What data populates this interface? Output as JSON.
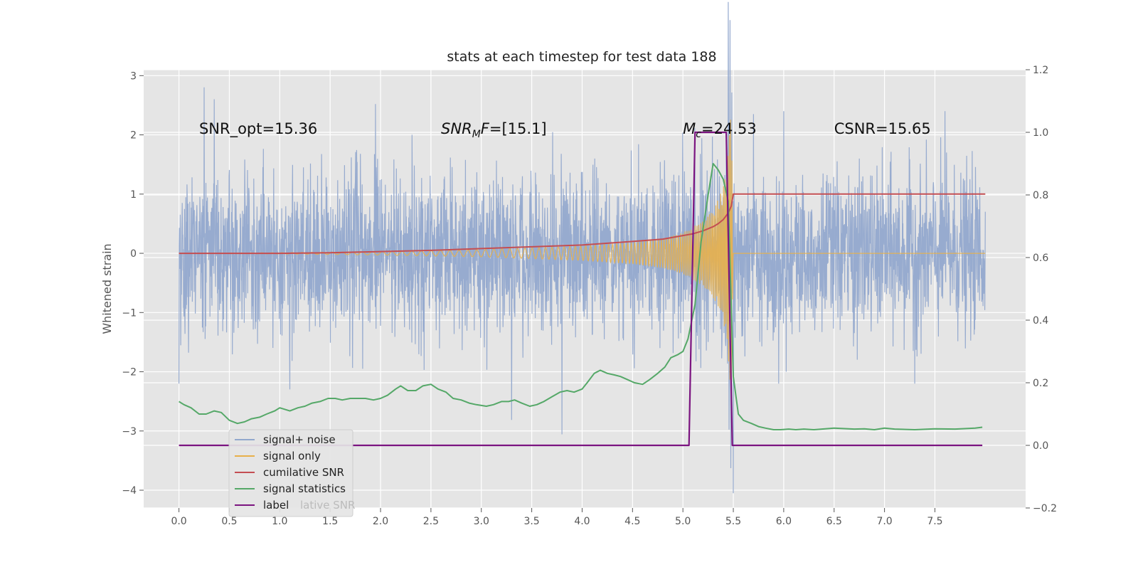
{
  "chart_data": {
    "type": "line",
    "title": "stats at each timestep for test data 188",
    "xlabel": "",
    "ylabel": "Whitened strain",
    "ylabel_right": "",
    "xlim": [
      -0.35,
      8.4
    ],
    "ylim": [
      -4.3,
      3.1
    ],
    "ylim_right": [
      -0.2,
      1.2
    ],
    "x_ticks": [
      0.0,
      0.5,
      1.0,
      1.5,
      2.0,
      2.5,
      3.0,
      3.5,
      4.0,
      4.5,
      5.0,
      5.5,
      6.0,
      6.5,
      7.0,
      7.5
    ],
    "x_tick_labels": [
      "0.0",
      "0.5",
      "1.0",
      "1.5",
      "2.0",
      "2.5",
      "3.0",
      "3.5",
      "4.0",
      "4.5",
      "5.0",
      "5.5",
      "6.0",
      "6.5",
      "7.0",
      "7.5"
    ],
    "y_ticks": [
      -4,
      -3,
      -2,
      -1,
      0,
      1,
      2,
      3
    ],
    "y_tick_labels": [
      "−4",
      "−3",
      "−2",
      "−1",
      "0",
      "1",
      "2",
      "3"
    ],
    "y_ticks_right": [
      -0.2,
      0.0,
      0.2,
      0.4,
      0.6,
      0.8,
      1.0,
      1.2
    ],
    "y_tick_labels_right": [
      "−0.2",
      "0.0",
      "0.2",
      "0.4",
      "0.6",
      "0.8",
      "1.0",
      "1.2"
    ],
    "grid": true,
    "legend_position": "bottom-left",
    "annotations": [
      {
        "text": "SNR_opt=15.36",
        "x": 0.2,
        "y": 2.1
      },
      {
        "text": "SNR",
        "sub": "M",
        "suffix": "F=[15.1]",
        "x": 2.6,
        "y": 2.1
      },
      {
        "text": "M",
        "sub": "c",
        "suffix": "=24.53",
        "x": 5.0,
        "y": 2.1
      },
      {
        "text": "CSNR=15.65",
        "x": 6.5,
        "y": 2.1
      }
    ],
    "legend_ghost_text": "lative SNR",
    "series": [
      {
        "name": "signal+ noise",
        "axis": "left",
        "color": "#92a8cd",
        "x_range": [
          0.0,
          8.0
        ],
        "typical_amplitude": 1.2,
        "peak_values": [
          {
            "x": 0.0,
            "y": -2.2
          },
          {
            "x": 0.25,
            "y": 2.8
          },
          {
            "x": 0.35,
            "y": 2.6
          },
          {
            "x": 1.1,
            "y": -2.3
          },
          {
            "x": 1.95,
            "y": 2.55
          },
          {
            "x": 3.3,
            "y": -2.85
          },
          {
            "x": 3.8,
            "y": -2.95
          },
          {
            "x": 5.45,
            "y": 2.45
          },
          {
            "x": 5.5,
            "y": -4.05
          },
          {
            "x": 5.7,
            "y": 2.35
          },
          {
            "x": 5.95,
            "y": -2.2
          },
          {
            "x": 6.0,
            "y": 2.4
          },
          {
            "x": 7.3,
            "y": -2.2
          },
          {
            "x": 7.6,
            "y": 2.4
          }
        ]
      },
      {
        "name": "signal only",
        "axis": "left",
        "color": "#e8b04a",
        "x": [
          0.0,
          1.0,
          2.0,
          3.0,
          3.5,
          4.0,
          4.5,
          4.8,
          5.0,
          5.2,
          5.3,
          5.4,
          5.45,
          5.48,
          5.5,
          8.0
        ],
        "envelope": [
          0.0,
          0.01,
          0.03,
          0.06,
          0.09,
          0.12,
          0.18,
          0.25,
          0.35,
          0.55,
          0.75,
          1.1,
          1.8,
          2.4,
          0.0,
          0.0
        ]
      },
      {
        "name": "cumilative SNR",
        "axis": "left",
        "color": "#c44e52",
        "x": [
          0.0,
          0.5,
          1.0,
          1.5,
          2.0,
          2.5,
          3.0,
          3.5,
          4.0,
          4.5,
          4.8,
          5.0,
          5.1,
          5.2,
          5.3,
          5.35,
          5.4,
          5.45,
          5.48,
          5.5,
          8.0
        ],
        "values": [
          0.0,
          0.0,
          0.0,
          0.01,
          0.03,
          0.05,
          0.08,
          0.11,
          0.14,
          0.2,
          0.24,
          0.3,
          0.33,
          0.38,
          0.45,
          0.5,
          0.57,
          0.68,
          0.8,
          1.0,
          1.0
        ]
      },
      {
        "name": "signal statistics",
        "axis": "right",
        "color": "#55a868",
        "x": [
          0.0,
          0.05,
          0.12,
          0.2,
          0.27,
          0.35,
          0.42,
          0.5,
          0.58,
          0.65,
          0.72,
          0.8,
          0.87,
          0.95,
          1.0,
          1.1,
          1.18,
          1.25,
          1.32,
          1.4,
          1.48,
          1.55,
          1.62,
          1.7,
          1.78,
          1.85,
          1.93,
          2.0,
          2.07,
          2.15,
          2.2,
          2.27,
          2.35,
          2.42,
          2.5,
          2.57,
          2.65,
          2.72,
          2.8,
          2.88,
          2.95,
          3.05,
          3.12,
          3.2,
          3.27,
          3.33,
          3.4,
          3.48,
          3.55,
          3.62,
          3.7,
          3.78,
          3.85,
          3.92,
          4.0,
          4.05,
          4.12,
          4.18,
          4.25,
          4.32,
          4.38,
          4.45,
          4.52,
          4.6,
          4.67,
          4.75,
          4.82,
          4.88,
          4.95,
          5.0,
          5.05,
          5.12,
          5.18,
          5.25,
          5.3,
          5.35,
          5.4,
          5.45,
          5.5,
          5.55,
          5.6,
          5.68,
          5.75,
          5.82,
          5.9,
          5.97,
          6.05,
          6.12,
          6.2,
          6.3,
          6.5,
          6.7,
          6.8,
          6.9,
          7.0,
          7.1,
          7.3,
          7.5,
          7.7,
          7.9,
          7.97
        ],
        "values": [
          0.14,
          0.13,
          0.12,
          0.1,
          0.1,
          0.11,
          0.105,
          0.08,
          0.07,
          0.075,
          0.085,
          0.09,
          0.1,
          0.11,
          0.12,
          0.11,
          0.12,
          0.125,
          0.135,
          0.14,
          0.15,
          0.15,
          0.145,
          0.15,
          0.15,
          0.15,
          0.145,
          0.15,
          0.16,
          0.18,
          0.19,
          0.175,
          0.175,
          0.19,
          0.195,
          0.18,
          0.17,
          0.15,
          0.145,
          0.135,
          0.13,
          0.125,
          0.13,
          0.14,
          0.14,
          0.145,
          0.135,
          0.125,
          0.13,
          0.14,
          0.155,
          0.17,
          0.175,
          0.17,
          0.18,
          0.2,
          0.23,
          0.24,
          0.23,
          0.225,
          0.22,
          0.21,
          0.2,
          0.195,
          0.21,
          0.23,
          0.25,
          0.28,
          0.29,
          0.3,
          0.34,
          0.45,
          0.65,
          0.8,
          0.9,
          0.88,
          0.85,
          0.78,
          0.22,
          0.1,
          0.08,
          0.07,
          0.06,
          0.055,
          0.05,
          0.05,
          0.052,
          0.05,
          0.052,
          0.05,
          0.055,
          0.052,
          0.053,
          0.05,
          0.055,
          0.052,
          0.05,
          0.053,
          0.052,
          0.055,
          0.058
        ]
      },
      {
        "name": "label",
        "axis": "right",
        "color": "#7b1480",
        "x": [
          0.0,
          5.06,
          5.12,
          5.43,
          5.49,
          7.97
        ],
        "values": [
          0.0,
          0.0,
          1.0,
          1.0,
          0.0,
          0.0
        ]
      }
    ]
  }
}
